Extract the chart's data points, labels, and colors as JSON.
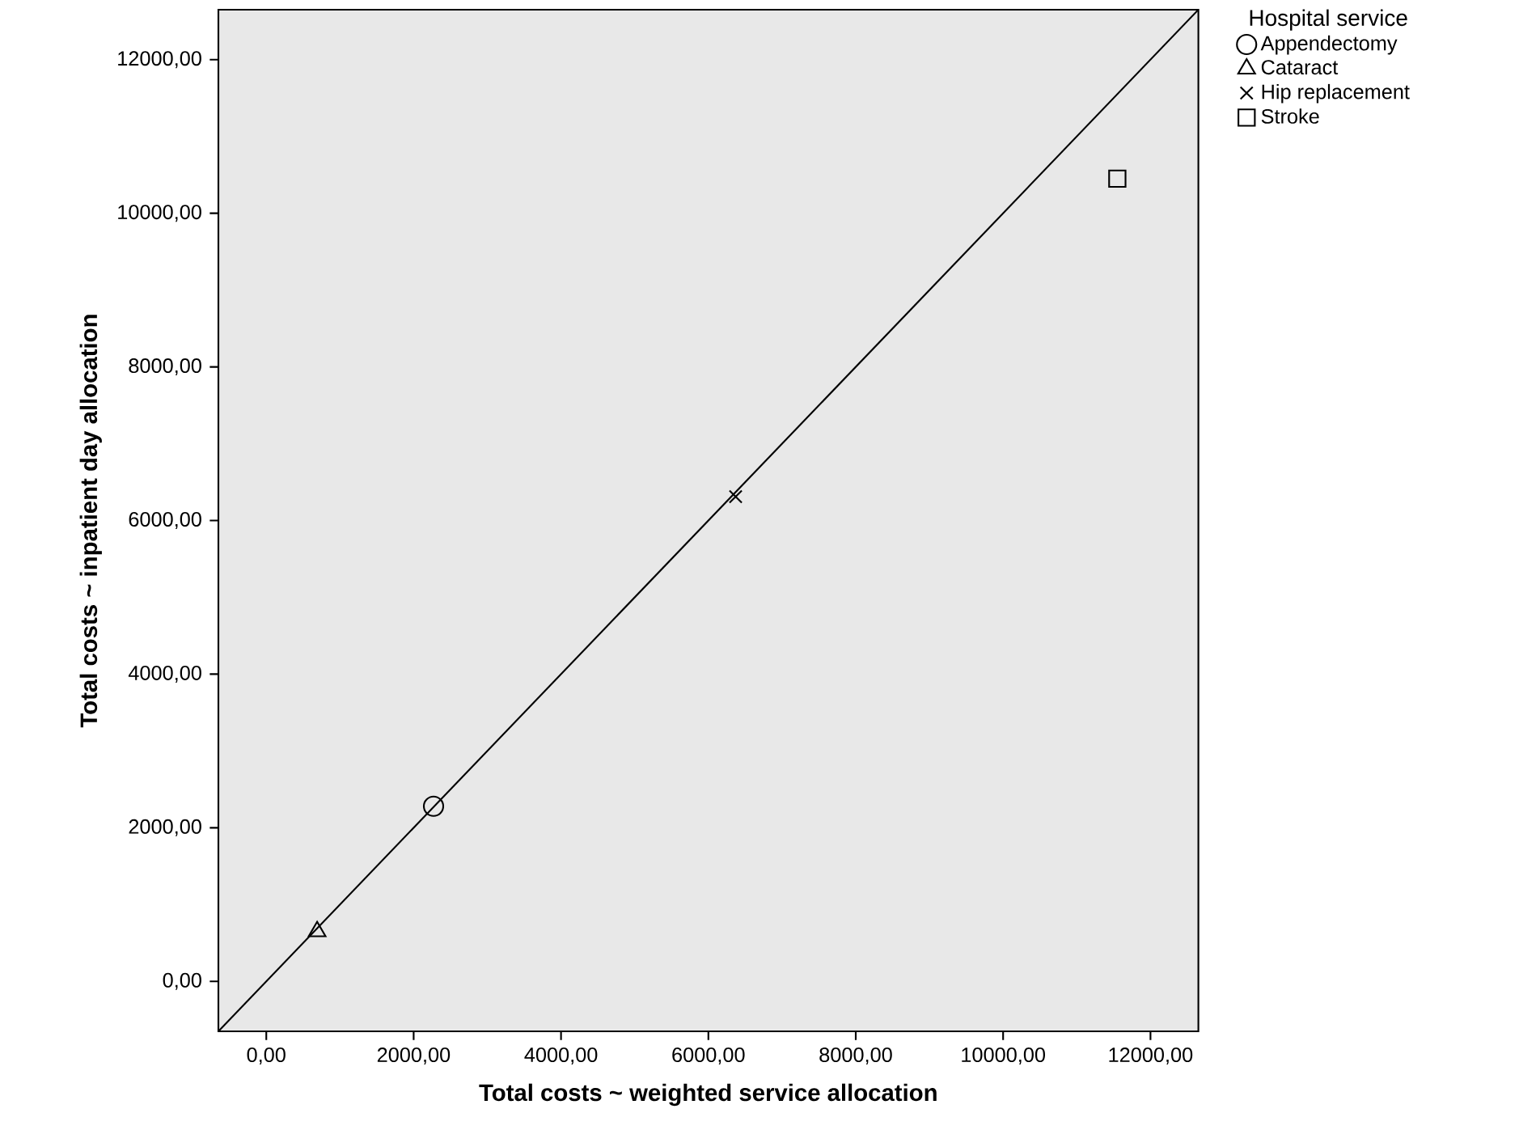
{
  "chart_data": {
    "type": "scatter",
    "xlabel": "Total costs ~ weighted service allocation",
    "ylabel": "Total costs ~ inpatient day allocation",
    "legend_title": "Hospital service",
    "legend": "top right",
    "xlim": [
      -650,
      12650
    ],
    "ylim": [
      -650,
      12650
    ],
    "xticks": [
      {
        "value": 0,
        "label": "0,00"
      },
      {
        "value": 2000,
        "label": "2000,00"
      },
      {
        "value": 4000,
        "label": "4000,00"
      },
      {
        "value": 6000,
        "label": "6000,00"
      },
      {
        "value": 8000,
        "label": "8000,00"
      },
      {
        "value": 10000,
        "label": "10000,00"
      },
      {
        "value": 12000,
        "label": "12000,00"
      }
    ],
    "yticks": [
      {
        "value": 0,
        "label": "0,00"
      },
      {
        "value": 2000,
        "label": "2000,00"
      },
      {
        "value": 4000,
        "label": "4000,00"
      },
      {
        "value": 6000,
        "label": "6000,00"
      },
      {
        "value": 8000,
        "label": "8000,00"
      },
      {
        "value": 10000,
        "label": "10000,00"
      },
      {
        "value": 12000,
        "label": "12000,00"
      }
    ],
    "series": [
      {
        "name": "Appendectomy",
        "marker": "circle",
        "color": "#000000",
        "x": [
          2270
        ],
        "values": [
          2280
        ]
      },
      {
        "name": "Cataract",
        "marker": "triangle",
        "color": "#000000",
        "x": [
          690
        ],
        "values": [
          650
        ]
      },
      {
        "name": "Hip replacement",
        "marker": "cross",
        "color": "#000000",
        "x": [
          6370
        ],
        "values": [
          6310
        ]
      },
      {
        "name": "Stroke",
        "marker": "square",
        "color": "#000000",
        "x": [
          11550
        ],
        "values": [
          10450
        ]
      },
      {
        "type": "line",
        "line_style": "solid",
        "color": "#000000",
        "x": [
          -650,
          12650
        ],
        "values": [
          -650,
          12650
        ]
      }
    ]
  }
}
